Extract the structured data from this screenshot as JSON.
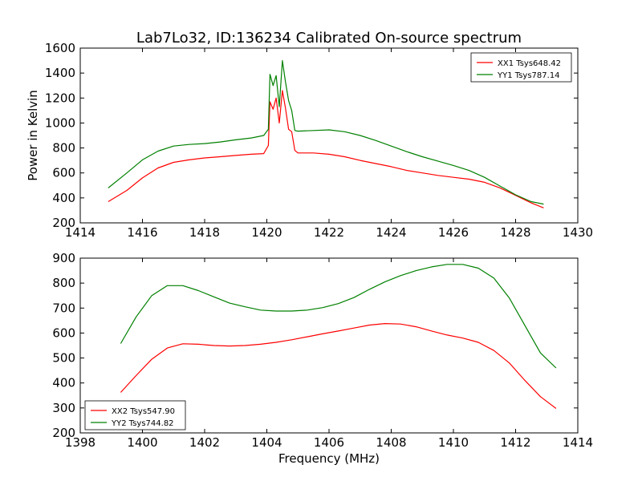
{
  "chart_data": [
    {
      "type": "line",
      "title": "Lab7Lo32, ID:136234 Calibrated On-source spectrum",
      "xlabel": "",
      "ylabel": "Power in Kelvin",
      "xlim": [
        1414,
        1430
      ],
      "ylim": [
        200,
        1600
      ],
      "xticks": [
        "1414",
        "1416",
        "1418",
        "1420",
        "1422",
        "1424",
        "1426",
        "1428",
        "1430"
      ],
      "yticks": [
        "200",
        "400",
        "600",
        "800",
        "1000",
        "1200",
        "1400",
        "1600"
      ],
      "legend_position": "upper right",
      "series": [
        {
          "name": "XX1 Tsys648.42",
          "color": "#ff0000",
          "x": [
            1414.9,
            1415.5,
            1416.0,
            1416.5,
            1417.0,
            1417.5,
            1418.0,
            1418.5,
            1419.0,
            1419.5,
            1419.9,
            1420.05,
            1420.1,
            1420.2,
            1420.3,
            1420.4,
            1420.5,
            1420.6,
            1420.7,
            1420.8,
            1420.9,
            1421.0,
            1421.5,
            1422.0,
            1422.5,
            1423.0,
            1423.5,
            1424.0,
            1424.5,
            1425.0,
            1425.5,
            1426.0,
            1426.5,
            1427.0,
            1427.5,
            1428.0,
            1428.5,
            1428.9
          ],
          "values": [
            370,
            460,
            560,
            640,
            685,
            705,
            720,
            730,
            740,
            750,
            755,
            820,
            1170,
            1110,
            1200,
            1000,
            1260,
            1120,
            950,
            930,
            780,
            760,
            760,
            750,
            730,
            700,
            675,
            650,
            620,
            600,
            580,
            565,
            550,
            525,
            480,
            420,
            360,
            320
          ]
        },
        {
          "name": "YY1 Tsys787.14",
          "color": "#008000",
          "x": [
            1414.9,
            1415.5,
            1416.0,
            1416.5,
            1417.0,
            1417.5,
            1418.0,
            1418.5,
            1419.0,
            1419.5,
            1419.9,
            1420.05,
            1420.1,
            1420.2,
            1420.3,
            1420.4,
            1420.5,
            1420.6,
            1420.7,
            1420.8,
            1420.9,
            1421.0,
            1421.5,
            1422.0,
            1422.5,
            1423.0,
            1423.5,
            1424.0,
            1424.5,
            1425.0,
            1425.5,
            1426.0,
            1426.5,
            1427.0,
            1427.5,
            1428.0,
            1428.5,
            1428.9
          ],
          "values": [
            480,
            600,
            705,
            775,
            815,
            828,
            835,
            848,
            865,
            880,
            900,
            950,
            1390,
            1300,
            1380,
            1130,
            1500,
            1330,
            1180,
            1100,
            940,
            935,
            940,
            945,
            930,
            900,
            860,
            815,
            770,
            730,
            695,
            660,
            620,
            565,
            495,
            425,
            370,
            350
          ]
        }
      ]
    },
    {
      "type": "line",
      "title": "",
      "xlabel": "Frequency (MHz)",
      "ylabel": "",
      "xlim": [
        1398,
        1414
      ],
      "ylim": [
        200,
        900
      ],
      "xticks": [
        "1398",
        "1400",
        "1402",
        "1404",
        "1406",
        "1408",
        "1410",
        "1412",
        "1414"
      ],
      "yticks": [
        "200",
        "300",
        "400",
        "500",
        "600",
        "700",
        "800",
        "900"
      ],
      "legend_position": "lower left",
      "series": [
        {
          "name": "XX2 Tsys547.90",
          "color": "#ff0000",
          "x": [
            1399.3,
            1399.8,
            1400.3,
            1400.8,
            1401.3,
            1401.8,
            1402.3,
            1402.8,
            1403.3,
            1403.8,
            1404.3,
            1404.8,
            1405.3,
            1405.8,
            1406.3,
            1406.8,
            1407.3,
            1407.8,
            1408.3,
            1408.8,
            1409.3,
            1409.8,
            1410.3,
            1410.8,
            1411.3,
            1411.8,
            1412.3,
            1412.8,
            1413.3
          ],
          "values": [
            362,
            430,
            495,
            540,
            557,
            555,
            550,
            548,
            550,
            555,
            563,
            573,
            585,
            597,
            608,
            620,
            632,
            638,
            636,
            625,
            608,
            592,
            580,
            563,
            530,
            480,
            410,
            345,
            298
          ]
        },
        {
          "name": "YY2 Tsys744.82",
          "color": "#008000",
          "x": [
            1399.3,
            1399.8,
            1400.3,
            1400.8,
            1401.3,
            1401.8,
            1402.3,
            1402.8,
            1403.3,
            1403.8,
            1404.3,
            1404.8,
            1405.3,
            1405.8,
            1406.3,
            1406.8,
            1407.3,
            1407.8,
            1408.3,
            1408.8,
            1409.3,
            1409.8,
            1410.3,
            1410.8,
            1411.3,
            1411.8,
            1412.3,
            1412.8,
            1413.3
          ],
          "values": [
            558,
            665,
            750,
            790,
            790,
            770,
            745,
            720,
            705,
            692,
            688,
            688,
            692,
            702,
            718,
            742,
            775,
            805,
            830,
            850,
            865,
            875,
            875,
            860,
            820,
            740,
            630,
            520,
            460
          ]
        }
      ]
    }
  ]
}
